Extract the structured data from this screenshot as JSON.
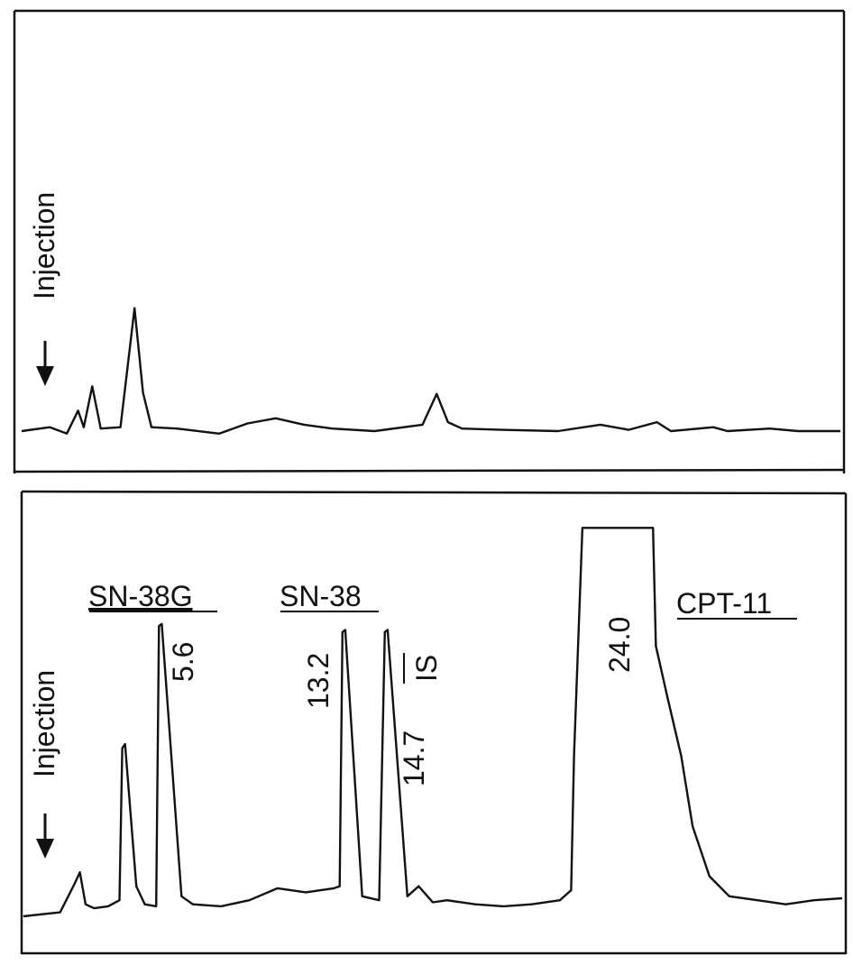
{
  "chart_data": [
    {
      "type": "line",
      "panel": "blank",
      "annotations": {
        "injection": "Injection"
      },
      "series": [
        {
          "points": [
            [
              0,
              0
            ],
            [
              1.0,
              0.3
            ],
            [
              1.6,
              -0.2
            ],
            [
              2.0,
              1.6
            ],
            [
              2.2,
              0.3
            ],
            [
              2.5,
              3.5
            ],
            [
              2.8,
              0.2
            ],
            [
              3.5,
              0.3
            ],
            [
              4.0,
              9.6
            ],
            [
              4.3,
              3.0
            ],
            [
              4.6,
              0.3
            ],
            [
              5.5,
              0.2
            ],
            [
              7.0,
              -0.2
            ],
            [
              8.0,
              0.6
            ],
            [
              9.0,
              1.0
            ],
            [
              10.0,
              0.5
            ],
            [
              11.0,
              0.2
            ],
            [
              12.5,
              0.0
            ],
            [
              14.2,
              0.5
            ],
            [
              14.7,
              2.9
            ],
            [
              15.1,
              0.7
            ],
            [
              15.6,
              0.2
            ],
            [
              17.0,
              0.1
            ],
            [
              19.0,
              0.0
            ],
            [
              20.5,
              0.5
            ],
            [
              21.5,
              0.1
            ],
            [
              22.5,
              0.7
            ],
            [
              23.0,
              0.0
            ],
            [
              24.5,
              0.3
            ],
            [
              25.0,
              0.0
            ],
            [
              26.5,
              0.2
            ],
            [
              27.5,
              0.0
            ],
            [
              29.0,
              0.0
            ]
          ]
        }
      ]
    },
    {
      "type": "line",
      "panel": "sample",
      "annotations": {
        "injection": "Injection",
        "peak_names": [
          "SN-38G",
          "SN-38",
          "IS",
          "CPT-11"
        ],
        "retention_times": [
          "5.6",
          "13.2",
          "14.7",
          "24.0"
        ]
      },
      "series": [
        {
          "points": [
            [
              0,
              0
            ],
            [
              1.3,
              0.2
            ],
            [
              1.8,
              1.6
            ],
            [
              2.0,
              2.2
            ],
            [
              2.2,
              0.6
            ],
            [
              2.5,
              0.4
            ],
            [
              3.0,
              0.5
            ],
            [
              3.4,
              0.8
            ],
            [
              3.5,
              8.4
            ],
            [
              3.6,
              8.6
            ],
            [
              4.0,
              1.5
            ],
            [
              4.3,
              0.6
            ],
            [
              4.7,
              0.5
            ],
            [
              4.8,
              14.5
            ],
            [
              4.9,
              14.6
            ],
            [
              5.6,
              1.0
            ],
            [
              6.0,
              0.6
            ],
            [
              7.0,
              0.5
            ],
            [
              8.0,
              0.8
            ],
            [
              9.0,
              1.4
            ],
            [
              10.0,
              1.2
            ],
            [
              11.0,
              1.4
            ],
            [
              11.2,
              1.5
            ],
            [
              11.3,
              14.2
            ],
            [
              11.4,
              14.3
            ],
            [
              12.0,
              1.0
            ],
            [
              12.6,
              0.8
            ],
            [
              12.8,
              14.2
            ],
            [
              12.9,
              14.3
            ],
            [
              13.6,
              1.0
            ],
            [
              14.0,
              1.5
            ],
            [
              14.5,
              0.7
            ],
            [
              15.0,
              0.8
            ],
            [
              16.0,
              0.6
            ],
            [
              17.0,
              0.5
            ],
            [
              18.0,
              0.6
            ],
            [
              19.0,
              0.8
            ],
            [
              19.4,
              1.3
            ],
            [
              19.5,
              8.0
            ],
            [
              19.8,
              19.4
            ],
            [
              22.3,
              19.4
            ],
            [
              22.4,
              13.5
            ],
            [
              22.8,
              11.0
            ],
            [
              23.3,
              8.0
            ],
            [
              23.7,
              4.5
            ],
            [
              24.3,
              2.0
            ],
            [
              25.0,
              1.0
            ],
            [
              26.0,
              0.8
            ],
            [
              27.0,
              0.6
            ],
            [
              28.0,
              0.8
            ],
            [
              29.0,
              0.9
            ]
          ]
        }
      ]
    }
  ]
}
